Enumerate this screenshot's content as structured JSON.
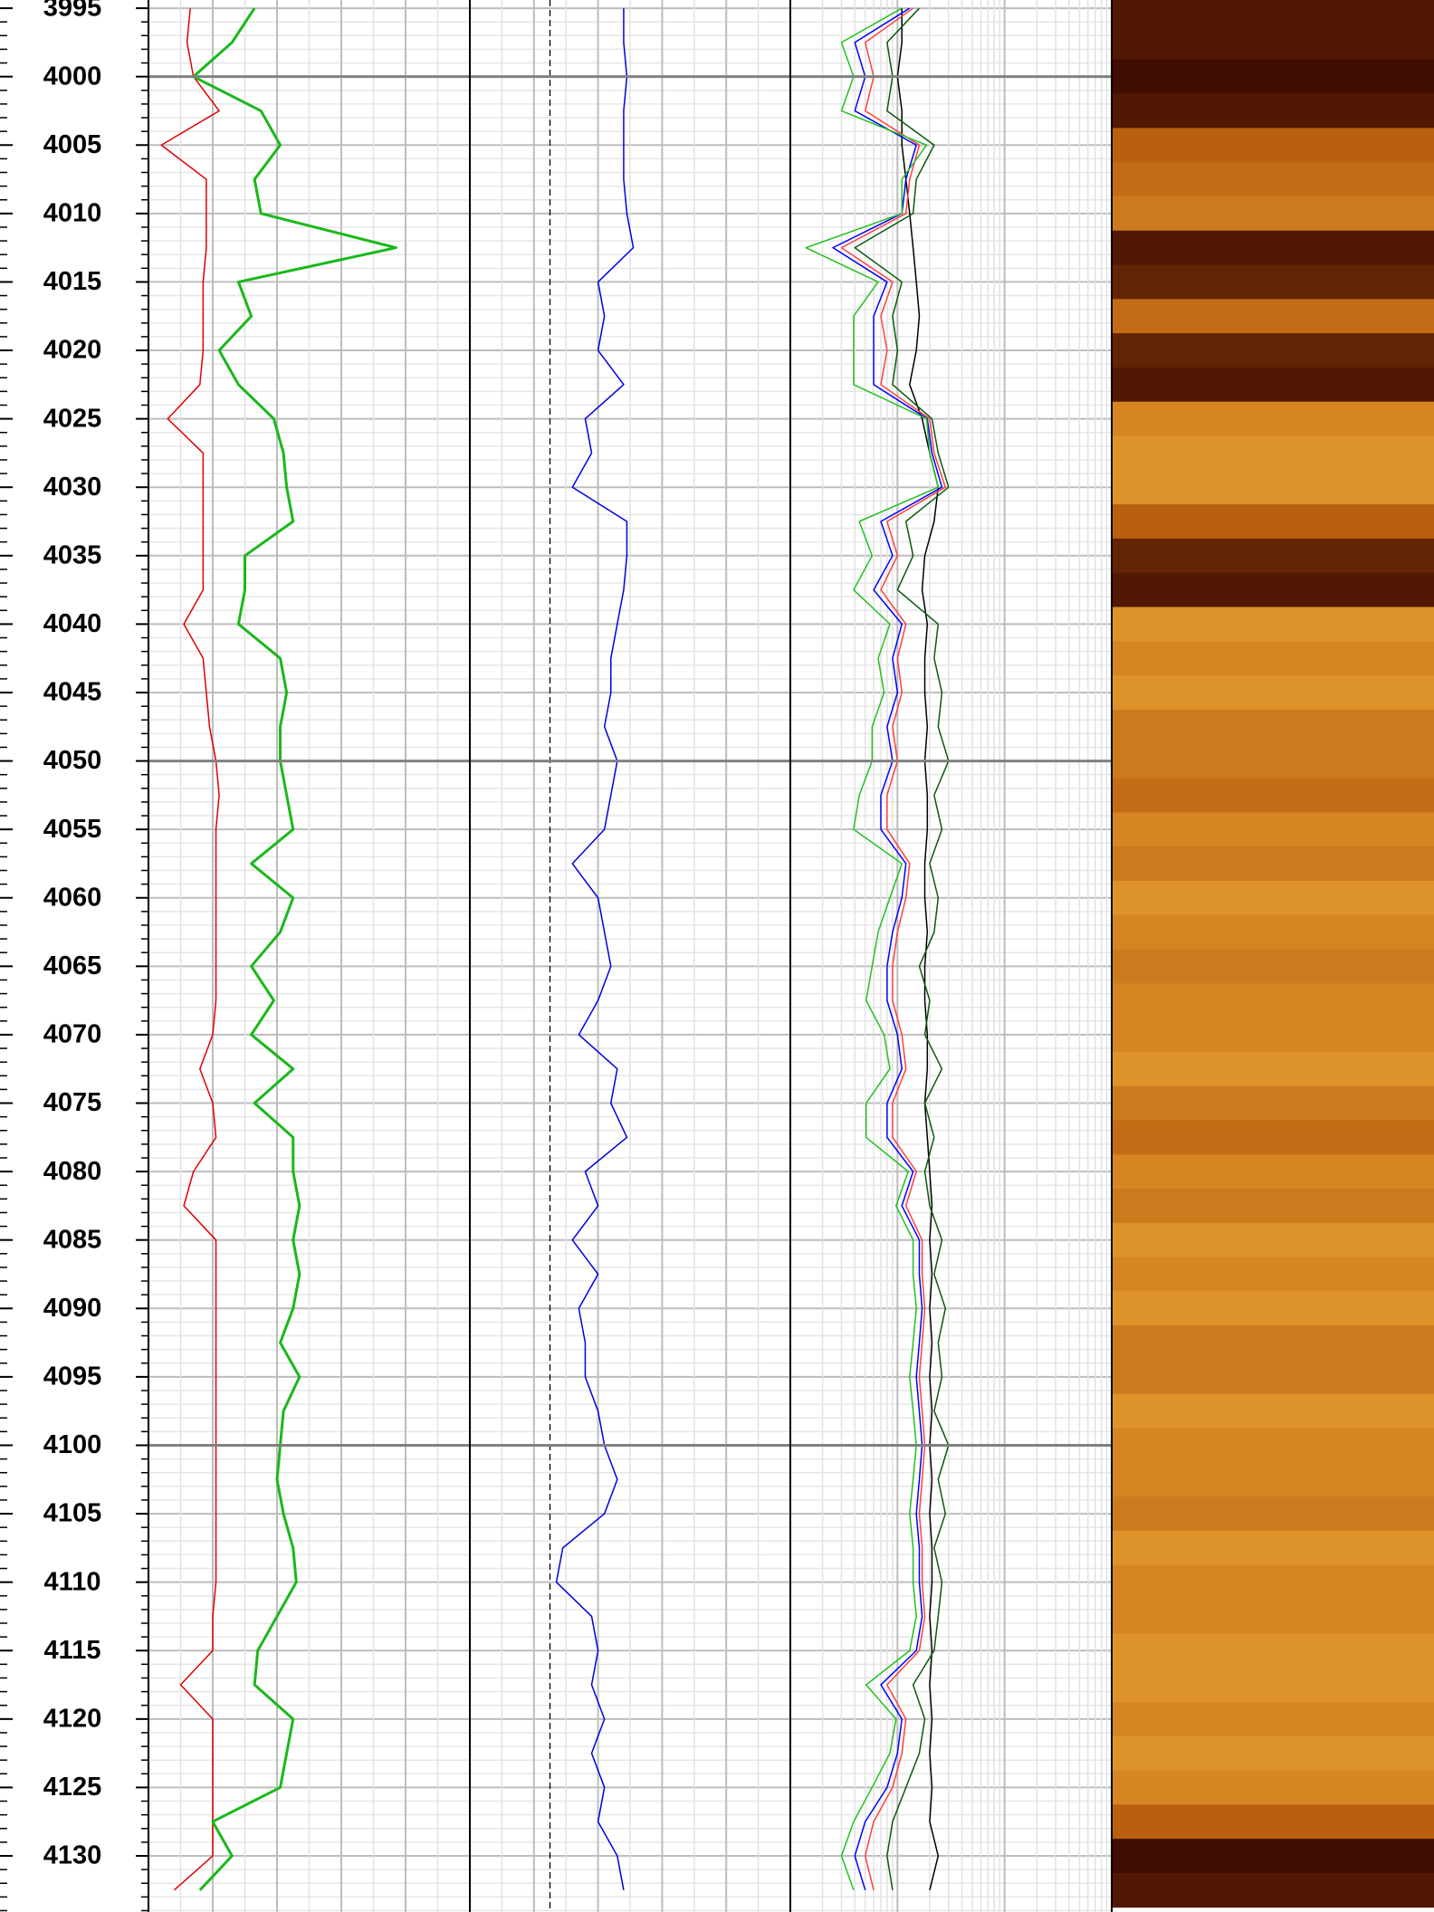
{
  "chart_data": {
    "type": "well_log",
    "depth": [
      3995,
      3997.5,
      4000,
      4002.5,
      4005,
      4007.5,
      4010,
      4012.5,
      4015,
      4017.5,
      4020,
      4022.5,
      4025,
      4027.5,
      4030,
      4032.5,
      4035,
      4037.5,
      4040,
      4042.5,
      4045,
      4047.5,
      4050,
      4052.5,
      4055,
      4057.5,
      4060,
      4062.5,
      4065,
      4067.5,
      4070,
      4072.5,
      4075,
      4077.5,
      4080,
      4082.5,
      4085,
      4087.5,
      4090,
      4092.5,
      4095,
      4097.5,
      4100,
      4102.5,
      4105,
      4107.5,
      4110,
      4112.5,
      4115,
      4117.5,
      4120,
      4122.5,
      4125,
      4127.5,
      4130,
      4132.5
    ],
    "ylim": [
      3994.4,
      4134.1
    ],
    "yticks": [
      3995,
      4000,
      4005,
      4010,
      4015,
      4020,
      4025,
      4030,
      4035,
      4040,
      4045,
      4050,
      4055,
      4060,
      4065,
      4070,
      4075,
      4080,
      4085,
      4090,
      4095,
      4100,
      4105,
      4110,
      4115,
      4120,
      4125,
      4130
    ],
    "major_yticks": [
      4000,
      4050,
      4100
    ],
    "minor_yticks": [
      3995,
      3996,
      3997,
      3998,
      3999,
      4000,
      4001,
      4002,
      4003,
      4004,
      4005,
      4006,
      4007,
      4008,
      4009,
      4010,
      4011,
      4012,
      4013,
      4014,
      4015,
      4016,
      4017,
      4018,
      4019,
      4020,
      4021,
      4022,
      4023,
      4024,
      4025,
      4026,
      4027,
      4028,
      4029,
      4030,
      4031,
      4032,
      4033,
      4034,
      4035,
      4036,
      4037,
      4038,
      4039,
      4040,
      4041,
      4042,
      4043,
      4044,
      4045,
      4046,
      4047,
      4048,
      4049,
      4050,
      4051,
      4052,
      4053,
      4054,
      4055,
      4056,
      4057,
      4058,
      4059,
      4060,
      4061,
      4062,
      4063,
      4064,
      4065,
      4066,
      4067,
      4068,
      4069,
      4070,
      4071,
      4072,
      4073,
      4074,
      4075,
      4076,
      4077,
      4078,
      4079,
      4080,
      4081,
      4082,
      4083,
      4084,
      4085,
      4086,
      4087,
      4088,
      4089,
      4090,
      4091,
      4092,
      4093,
      4094,
      4095,
      4096,
      4097,
      4098,
      4099,
      4100,
      4101,
      4102,
      4103,
      4104,
      4105,
      4106,
      4107,
      4108,
      4109,
      4110,
      4111,
      4112,
      4113,
      4114,
      4115,
      4116,
      4117,
      4118,
      4119,
      4120,
      4121,
      4122,
      4123,
      4124,
      4125,
      4126,
      4127,
      4128,
      4129,
      4130,
      4131,
      4132,
      4133,
      4134
    ],
    "tracks": [
      {
        "type": "line",
        "xlim": [
          0,
          100
        ],
        "xticks": [
          0,
          10,
          20,
          30,
          40,
          50,
          60,
          70,
          80,
          90,
          100
        ],
        "series": [
          {
            "color": "#e00000",
            "width": 1.5,
            "values": [
              13,
              12,
              14,
              22,
              4,
              18,
              18,
              18,
              17,
              17,
              17,
              16,
              6,
              17,
              17,
              17,
              17,
              17,
              11,
              17,
              18,
              19,
              21,
              22,
              21,
              21,
              21,
              21,
              21,
              21,
              20,
              16,
              20,
              21,
              14,
              11,
              21,
              21,
              21,
              21,
              21,
              21,
              21,
              21,
              21,
              21,
              21,
              20,
              20,
              10,
              20,
              20,
              20,
              20,
              20,
              8
            ]
          },
          {
            "color": "#1ab81a",
            "width": 3,
            "values": [
              33,
              26,
              14,
              35,
              41,
              33,
              35,
              77,
              28,
              32,
              22,
              28,
              39,
              42,
              43,
              45,
              30,
              30,
              28,
              41,
              43,
              41,
              41,
              43,
              45,
              32,
              45,
              41,
              32,
              39,
              32,
              45,
              33,
              45,
              45,
              47,
              45,
              47,
              45,
              41,
              47,
              42,
              41,
              40,
              42,
              45,
              46,
              40,
              34,
              33,
              45,
              43,
              41,
              20,
              26,
              16
            ]
          }
        ]
      },
      {
        "type": "line",
        "xlim": [
          0,
          100
        ],
        "xticks": [
          0,
          10,
          20,
          30,
          40,
          50,
          60,
          70,
          80,
          90,
          100
        ],
        "reference_line": 25,
        "series": [
          {
            "color": "#0000e0",
            "width": 1.5,
            "values": [
              48,
              48,
              49,
              48,
              48,
              48,
              49,
              51,
              40,
              42,
              40,
              48,
              36,
              38,
              32,
              49,
              49,
              48,
              46,
              44,
              44,
              42,
              46,
              44,
              42,
              32,
              40,
              42,
              44,
              40,
              34,
              46,
              44,
              49,
              36,
              40,
              32,
              40,
              34,
              36,
              36,
              40,
              42,
              46,
              42,
              29,
              27,
              38,
              40,
              38,
              42,
              38,
              42,
              40,
              46,
              48
            ]
          }
        ]
      },
      {
        "type": "line",
        "log": true,
        "xlim": [
          1,
          1000
        ],
        "xticks": [
          1,
          2,
          3,
          4,
          5,
          6,
          7,
          8,
          9,
          10,
          20,
          30,
          40,
          50,
          60,
          70,
          80,
          90,
          100,
          200,
          300,
          400,
          500,
          600,
          700,
          800,
          900,
          1000
        ],
        "series": [
          {
            "color": "#000000",
            "width": 1.5,
            "values": [
              11,
              11,
              10,
              11,
              11,
              12,
              13,
              14,
              15,
              16,
              15,
              13,
              17,
              20,
              24,
              22,
              18,
              17,
              19,
              18,
              18,
              19,
              18,
              19,
              19,
              18,
              18,
              19,
              18,
              18,
              19,
              19,
              18,
              19,
              20,
              21,
              20,
              21,
              20,
              21,
              20,
              21,
              20,
              21,
              20,
              21,
              21,
              20,
              21,
              20,
              21,
              20,
              21,
              20,
              24,
              20
            ]
          },
          {
            "color": "#ff4040",
            "width": 1.5,
            "values": [
              14,
              5,
              6,
              5,
              16,
              13,
              12,
              3,
              9,
              7,
              8,
              7,
              20,
              22,
              28,
              8,
              10,
              7,
              12,
              10,
              11,
              9,
              10,
              8,
              8,
              13,
              12,
              10,
              9,
              9,
              11,
              12,
              9,
              9,
              15,
              12,
              17,
              17,
              18,
              17,
              16,
              17,
              18,
              17,
              16,
              17,
              17,
              18,
              16,
              8,
              12,
              11,
              9,
              6,
              5,
              6
            ]
          },
          {
            "color": "#0000ff",
            "width": 1.5,
            "values": [
              13,
              4,
              5,
              4,
              15,
              12,
              11,
              2.5,
              8,
              6,
              6,
              6,
              19,
              21,
              26,
              7,
              9,
              6,
              11,
              9,
              10,
              8,
              9,
              7,
              7,
              12,
              11,
              9,
              8,
              8,
              10,
              11,
              8,
              8,
              14,
              11,
              16,
              16,
              17,
              16,
              15,
              16,
              17,
              16,
              15,
              16,
              16,
              17,
              15,
              7,
              11,
              10,
              8,
              5,
              4,
              5
            ]
          },
          {
            "color": "#22c022",
            "width": 1.5,
            "values": [
              11,
              3,
              3.9,
              3,
              18.7,
              11,
              11,
              1.4,
              6.6,
              3.9,
              3.9,
              3.9,
              18.7,
              20,
              24,
              4.4,
              5.8,
              3.9,
              8.5,
              6.6,
              7.5,
              5.8,
              5.8,
              4.4,
              3.9,
              11,
              8.5,
              6.6,
              5.8,
              5.1,
              7.5,
              8.5,
              5.1,
              5.1,
              12.6,
              9.7,
              14,
              14,
              15,
              14,
              13,
              14,
              15,
              14,
              13,
              14,
              14,
              15,
              13,
              5.1,
              9.7,
              8.5,
              5.8,
              3.9,
              3,
              3.9
            ]
          },
          {
            "color": "#0a5a0a",
            "width": 1.5,
            "values": [
              16,
              8,
              9,
              8,
              22,
              15,
              14,
              4,
              11,
              9,
              10,
              9,
              21,
              24,
              30,
              12,
              14,
              10,
              24,
              22,
              26,
              24,
              30,
              22,
              26,
              20,
              24,
              22,
              16,
              20,
              18,
              26,
              18,
              22,
              18,
              20,
              26,
              22,
              28,
              24,
              26,
              22,
              30,
              24,
              28,
              22,
              26,
              24,
              22,
              14,
              18,
              16,
              12,
              9,
              8,
              9
            ]
          }
        ]
      },
      {
        "type": "heatmap",
        "values": [
          90,
          90,
          95,
          90,
          60,
          55,
          50,
          90,
          85,
          55,
          85,
          90,
          45,
          40,
          40,
          60,
          85,
          90,
          40,
          45,
          40,
          50,
          50,
          55,
          45,
          50,
          40,
          45,
          50,
          45,
          45,
          40,
          50,
          55,
          45,
          50,
          40,
          45,
          40,
          50,
          50,
          40,
          45,
          45,
          50,
          40,
          45,
          45,
          40,
          40,
          45,
          40,
          45,
          60,
          95,
          90
        ]
      }
    ]
  }
}
